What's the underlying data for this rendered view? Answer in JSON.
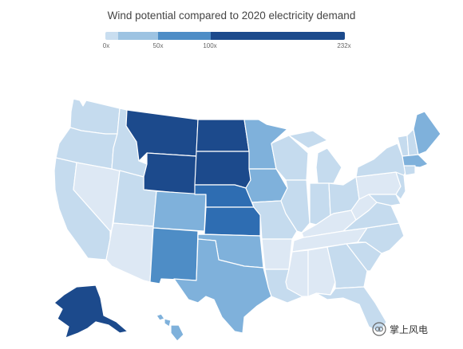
{
  "title": "Wind potential compared to 2020 electricity demand",
  "legend": {
    "ticks": [
      "0x",
      "50x",
      "100x",
      "232x"
    ],
    "segment_colors": [
      "#c9def0",
      "#9dc3e2",
      "#4e8dc6",
      "#1c4a8c"
    ]
  },
  "colors": {
    "very_light": "#dde8f4",
    "light": "#c5dbee",
    "light_mid": "#a8cbe5",
    "mid": "#7fb1db",
    "mid_dark": "#4e8dc6",
    "dark": "#2e6db2",
    "darkest": "#1c4a8c"
  },
  "states": [
    {
      "name": "Washington",
      "shade": "light"
    },
    {
      "name": "Oregon",
      "shade": "light"
    },
    {
      "name": "California",
      "shade": "light"
    },
    {
      "name": "Nevada",
      "shade": "very_light"
    },
    {
      "name": "Idaho",
      "shade": "light"
    },
    {
      "name": "Montana",
      "shade": "darkest"
    },
    {
      "name": "Wyoming",
      "shade": "darkest"
    },
    {
      "name": "Utah",
      "shade": "light"
    },
    {
      "name": "Arizona",
      "shade": "very_light"
    },
    {
      "name": "Colorado",
      "shade": "mid"
    },
    {
      "name": "New Mexico",
      "shade": "mid_dark"
    },
    {
      "name": "North Dakota",
      "shade": "darkest"
    },
    {
      "name": "South Dakota",
      "shade": "darkest"
    },
    {
      "name": "Nebraska",
      "shade": "dark"
    },
    {
      "name": "Kansas",
      "shade": "dark"
    },
    {
      "name": "Oklahoma",
      "shade": "mid"
    },
    {
      "name": "Texas",
      "shade": "mid"
    },
    {
      "name": "Minnesota",
      "shade": "mid"
    },
    {
      "name": "Iowa",
      "shade": "mid"
    },
    {
      "name": "Missouri",
      "shade": "light"
    },
    {
      "name": "Arkansas",
      "shade": "very_light"
    },
    {
      "name": "Louisiana",
      "shade": "light"
    },
    {
      "name": "Wisconsin",
      "shade": "light"
    },
    {
      "name": "Illinois",
      "shade": "light"
    },
    {
      "name": "Michigan",
      "shade": "light"
    },
    {
      "name": "Indiana",
      "shade": "light"
    },
    {
      "name": "Ohio",
      "shade": "light"
    },
    {
      "name": "Kentucky",
      "shade": "very_light"
    },
    {
      "name": "Tennessee",
      "shade": "very_light"
    },
    {
      "name": "Mississippi",
      "shade": "very_light"
    },
    {
      "name": "Alabama",
      "shade": "very_light"
    },
    {
      "name": "Georgia",
      "shade": "light"
    },
    {
      "name": "Florida",
      "shade": "light"
    },
    {
      "name": "South Carolina",
      "shade": "light"
    },
    {
      "name": "North Carolina",
      "shade": "light"
    },
    {
      "name": "Virginia",
      "shade": "light"
    },
    {
      "name": "West Virginia",
      "shade": "very_light"
    },
    {
      "name": "Pennsylvania",
      "shade": "very_light"
    },
    {
      "name": "New York",
      "shade": "light"
    },
    {
      "name": "New Jersey",
      "shade": "light"
    },
    {
      "name": "Maryland",
      "shade": "light"
    },
    {
      "name": "Vermont",
      "shade": "light"
    },
    {
      "name": "New Hampshire",
      "shade": "light"
    },
    {
      "name": "Maine",
      "shade": "mid"
    },
    {
      "name": "Massachusetts",
      "shade": "mid"
    },
    {
      "name": "Connecticut",
      "shade": "light"
    },
    {
      "name": "Alaska",
      "shade": "darkest"
    },
    {
      "name": "Hawaii",
      "shade": "mid"
    }
  ],
  "watermark": {
    "text": "掌上风电"
  }
}
